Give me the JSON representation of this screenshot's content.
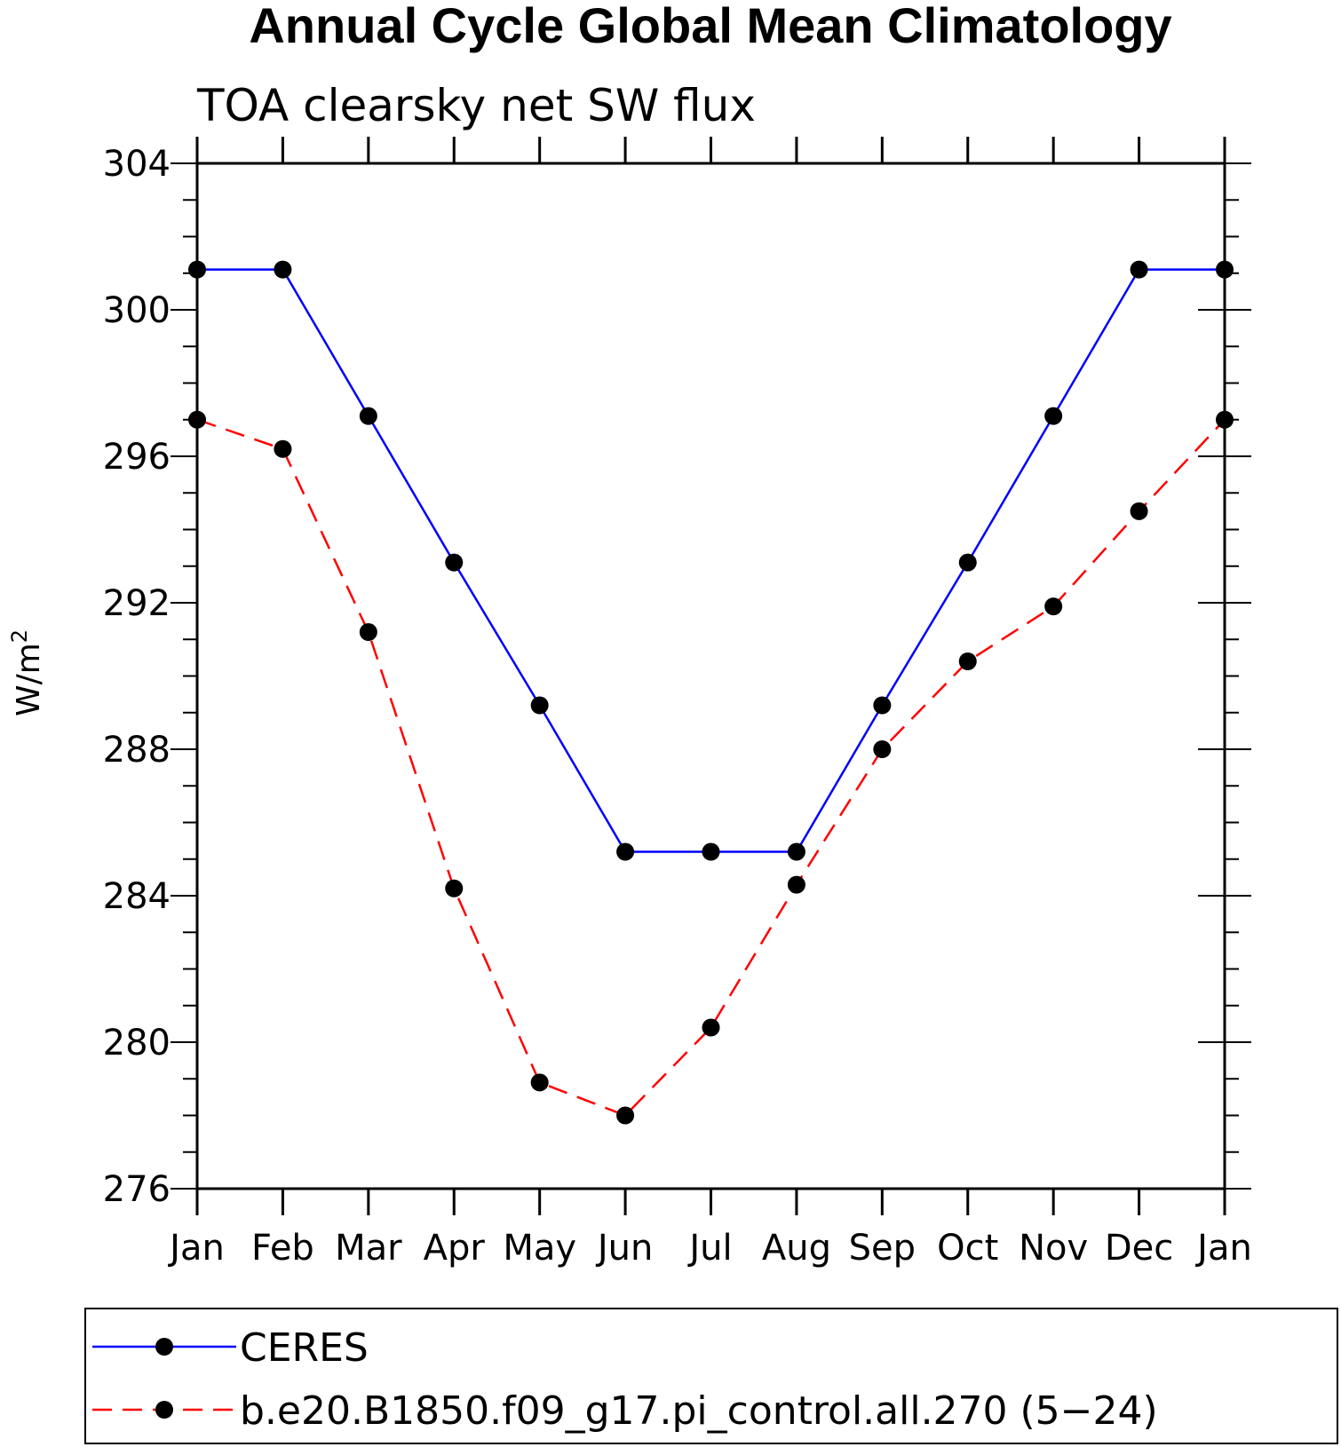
{
  "chart_data": {
    "type": "line",
    "title": "Annual Cycle Global Mean Climatology",
    "subtitle": "TOA clearsky net SW flux",
    "ylabel": "W/m",
    "ylabel_superscript": "2",
    "ylim": [
      276,
      304
    ],
    "yticks": [
      "304",
      "300",
      "296",
      "292",
      "288",
      "284",
      "280",
      "276"
    ],
    "categories": [
      "Jan",
      "Feb",
      "Mar",
      "Apr",
      "May",
      "Jun",
      "Jul",
      "Aug",
      "Sep",
      "Oct",
      "Nov",
      "Dec",
      "Jan"
    ],
    "grid": false,
    "legend_position": "bottom",
    "series": [
      {
        "name": "CERES",
        "color": "#0000ff",
        "dash": "solid",
        "marker": "filled-circle",
        "values": [
          301.1,
          301.1,
          297.1,
          293.1,
          289.2,
          285.2,
          285.2,
          285.2,
          289.2,
          293.1,
          297.1,
          301.1,
          301.1
        ]
      },
      {
        "name": "b.e20.B1850.f09_g17.pi_control.all.270 (5−24)",
        "color": "#ff0000",
        "dash": "dashed",
        "marker": "filled-circle",
        "values": [
          297.0,
          296.2,
          291.2,
          284.2,
          278.9,
          278.0,
          280.4,
          284.3,
          288.0,
          290.4,
          291.9,
          294.5,
          297.0
        ]
      }
    ]
  }
}
